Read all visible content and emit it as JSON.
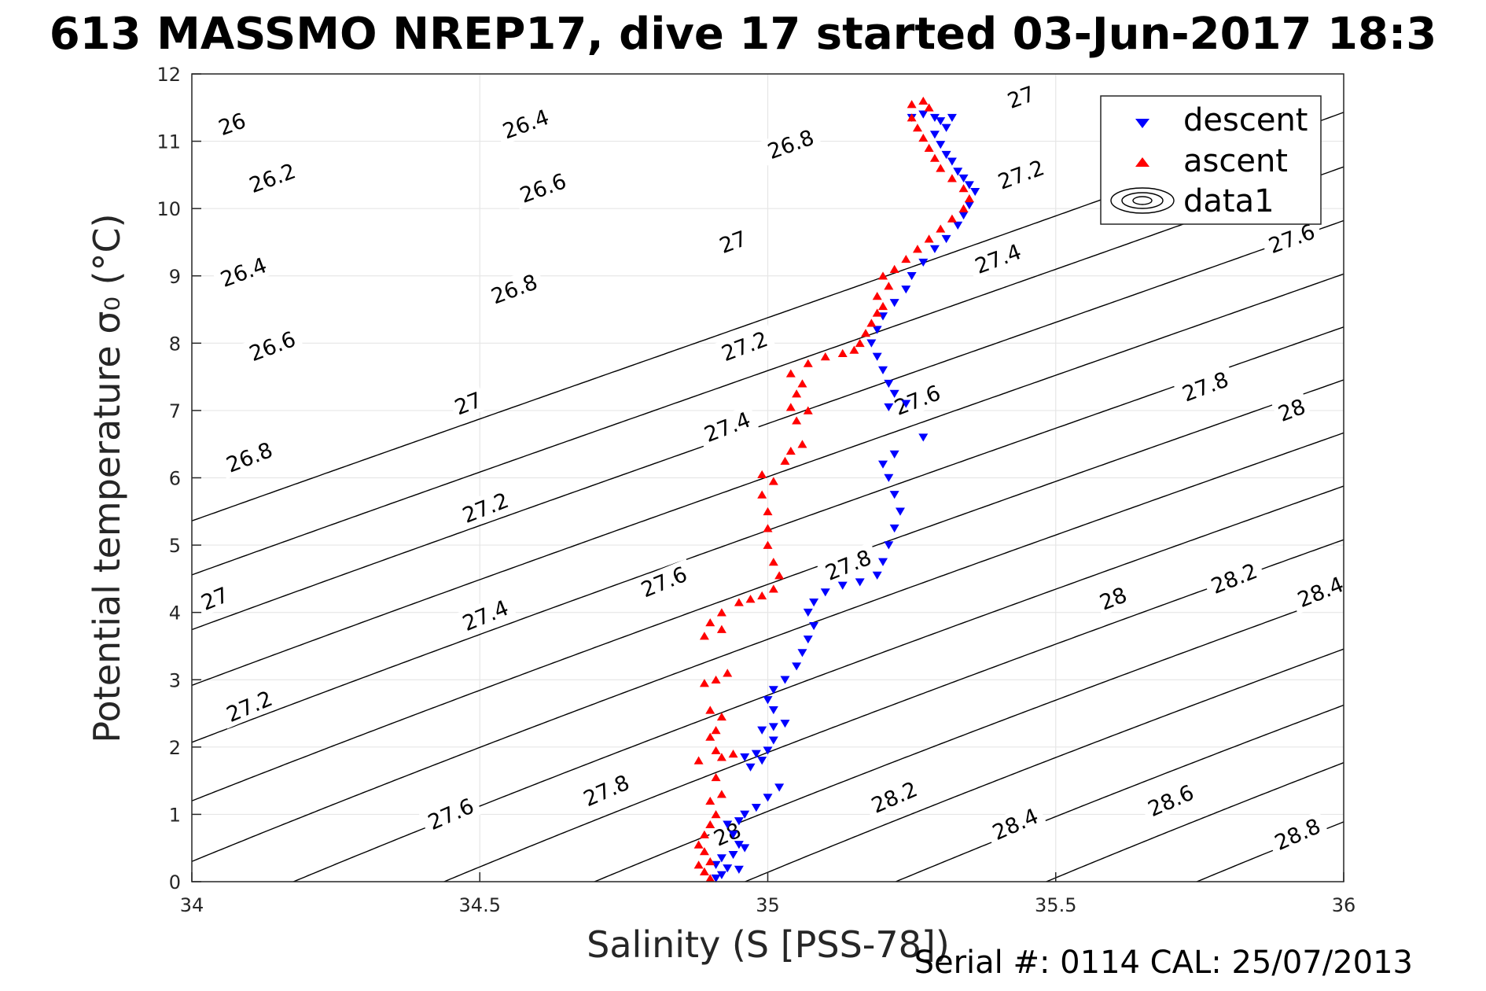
{
  "chart_data": {
    "type": "scatter",
    "title": "613 MASSMO NREP17, dive 17 started 03-Jun-2017 18:3",
    "xlabel": "Salinity (S [PSS-78])",
    "ylabel": "Potential temperature σ₀ (°C)",
    "xlim": [
      34,
      36
    ],
    "ylim": [
      0,
      12
    ],
    "grid": true,
    "legend_placement": "top-right",
    "x_ticks": [
      "34",
      "34.5",
      "35",
      "35.5",
      "36"
    ],
    "y_ticks": [
      "0",
      "1",
      "2",
      "3",
      "4",
      "5",
      "6",
      "7",
      "8",
      "9",
      "10",
      "11",
      "12"
    ],
    "legend": [
      "descent",
      "ascent",
      "data1"
    ],
    "footer": "Serial #: 0114  CAL: 25/07/2013",
    "colors": {
      "descent": "#0000ff",
      "ascent": "#ff0000",
      "contour": "#000000",
      "grid": "#e6e6e6"
    },
    "contours": {
      "levels": [
        25.8,
        26.0,
        26.2,
        26.4,
        26.6,
        26.8,
        27.0,
        27.2,
        27.4,
        27.6,
        27.8,
        28.0,
        28.2,
        28.4,
        28.6,
        28.8,
        29.0
      ],
      "labels": [
        {
          "text": "26",
          "s": 34.07,
          "t": 11.25
        },
        {
          "text": "26.2",
          "s": 34.14,
          "t": 10.45
        },
        {
          "text": "26.4",
          "s": 34.09,
          "t": 9.05
        },
        {
          "text": "26.6",
          "s": 34.14,
          "t": 7.95
        },
        {
          "text": "26.8",
          "s": 34.1,
          "t": 6.3
        },
        {
          "text": "27",
          "s": 34.04,
          "t": 4.2
        },
        {
          "text": "27.2",
          "s": 34.1,
          "t": 2.6
        },
        {
          "text": "26.4",
          "s": 34.58,
          "t": 11.25
        },
        {
          "text": "26.6",
          "s": 34.61,
          "t": 10.3
        },
        {
          "text": "26.8",
          "s": 34.56,
          "t": 8.8
        },
        {
          "text": "27",
          "s": 34.48,
          "t": 7.1
        },
        {
          "text": "27.2",
          "s": 34.51,
          "t": 5.55
        },
        {
          "text": "27.4",
          "s": 34.51,
          "t": 3.95
        },
        {
          "text": "27.6",
          "s": 34.45,
          "t": 1.0
        },
        {
          "text": "26.8",
          "s": 35.04,
          "t": 10.95
        },
        {
          "text": "27",
          "s": 34.94,
          "t": 9.5
        },
        {
          "text": "27.2",
          "s": 34.96,
          "t": 7.95
        },
        {
          "text": "27.4",
          "s": 34.93,
          "t": 6.75
        },
        {
          "text": "27.6",
          "s": 34.82,
          "t": 4.45
        },
        {
          "text": "27.8",
          "s": 34.72,
          "t": 1.35
        },
        {
          "text": "27",
          "s": 35.44,
          "t": 11.65
        },
        {
          "text": "27.2",
          "s": 35.44,
          "t": 10.5
        },
        {
          "text": "27.4",
          "s": 35.4,
          "t": 9.25
        },
        {
          "text": "27.6",
          "s": 35.26,
          "t": 7.15
        },
        {
          "text": "27.8",
          "s": 35.14,
          "t": 4.7
        },
        {
          "text": "28",
          "s": 34.93,
          "t": 0.7
        },
        {
          "text": "27.6",
          "s": 35.91,
          "t": 9.55
        },
        {
          "text": "27.8",
          "s": 35.76,
          "t": 7.35
        },
        {
          "text": "28",
          "s": 35.6,
          "t": 4.2
        },
        {
          "text": "28.2",
          "s": 35.22,
          "t": 1.25
        },
        {
          "text": "28",
          "s": 35.91,
          "t": 7.0
        },
        {
          "text": "28.2",
          "s": 35.81,
          "t": 4.5
        },
        {
          "text": "28.4",
          "s": 35.43,
          "t": 0.85
        },
        {
          "text": "28.4",
          "s": 36.0,
          "t": 4.3
        },
        {
          "text": "28.6",
          "s": 35.7,
          "t": 1.2
        },
        {
          "text": "28.8",
          "s": 35.92,
          "t": 0.7
        }
      ]
    },
    "series": [
      {
        "name": "descent",
        "marker": "triangle-down",
        "points": [
          [
            35.25,
            11.35
          ],
          [
            35.27,
            11.4
          ],
          [
            35.29,
            11.35
          ],
          [
            35.3,
            11.3
          ],
          [
            35.32,
            11.35
          ],
          [
            35.31,
            11.2
          ],
          [
            35.29,
            11.1
          ],
          [
            35.3,
            10.95
          ],
          [
            35.31,
            10.8
          ],
          [
            35.32,
            10.7
          ],
          [
            35.33,
            10.55
          ],
          [
            35.34,
            10.45
          ],
          [
            35.35,
            10.35
          ],
          [
            35.36,
            10.25
          ],
          [
            35.35,
            10.05
          ],
          [
            35.34,
            9.9
          ],
          [
            35.33,
            9.75
          ],
          [
            35.31,
            9.55
          ],
          [
            35.29,
            9.4
          ],
          [
            35.27,
            9.2
          ],
          [
            35.25,
            9.0
          ],
          [
            35.24,
            8.8
          ],
          [
            35.22,
            8.6
          ],
          [
            35.2,
            8.4
          ],
          [
            35.19,
            8.2
          ],
          [
            35.18,
            8.0
          ],
          [
            35.19,
            7.8
          ],
          [
            35.2,
            7.6
          ],
          [
            35.21,
            7.4
          ],
          [
            35.22,
            7.25
          ],
          [
            35.21,
            7.05
          ],
          [
            35.24,
            7.1
          ],
          [
            35.27,
            6.6
          ],
          [
            35.22,
            6.35
          ],
          [
            35.2,
            6.2
          ],
          [
            35.21,
            6.0
          ],
          [
            35.22,
            5.75
          ],
          [
            35.23,
            5.5
          ],
          [
            35.22,
            5.25
          ],
          [
            35.21,
            5.0
          ],
          [
            35.2,
            4.75
          ],
          [
            35.19,
            4.55
          ],
          [
            35.16,
            4.45
          ],
          [
            35.13,
            4.4
          ],
          [
            35.1,
            4.3
          ],
          [
            35.08,
            4.15
          ],
          [
            35.07,
            4.0
          ],
          [
            35.08,
            3.8
          ],
          [
            35.07,
            3.6
          ],
          [
            35.06,
            3.4
          ],
          [
            35.05,
            3.2
          ],
          [
            35.03,
            3.0
          ],
          [
            35.01,
            2.85
          ],
          [
            35.0,
            2.7
          ],
          [
            35.01,
            2.55
          ],
          [
            35.03,
            2.35
          ],
          [
            35.01,
            2.3
          ],
          [
            34.99,
            2.25
          ],
          [
            35.01,
            2.1
          ],
          [
            35.0,
            1.95
          ],
          [
            34.98,
            1.9
          ],
          [
            34.96,
            1.85
          ],
          [
            34.99,
            1.8
          ],
          [
            34.97,
            1.7
          ],
          [
            35.02,
            1.4
          ],
          [
            35.0,
            1.25
          ],
          [
            34.98,
            1.1
          ],
          [
            34.96,
            1.0
          ],
          [
            34.95,
            0.9
          ],
          [
            34.93,
            0.85
          ],
          [
            34.94,
            0.7
          ],
          [
            34.95,
            0.55
          ],
          [
            34.96,
            0.5
          ],
          [
            34.94,
            0.4
          ],
          [
            34.92,
            0.35
          ],
          [
            34.91,
            0.25
          ],
          [
            34.93,
            0.2
          ],
          [
            34.95,
            0.18
          ],
          [
            34.92,
            0.1
          ],
          [
            34.91,
            0.05
          ]
        ]
      },
      {
        "name": "ascent",
        "marker": "triangle-up",
        "points": [
          [
            35.25,
            11.55
          ],
          [
            35.27,
            11.6
          ],
          [
            35.28,
            11.5
          ],
          [
            35.25,
            11.35
          ],
          [
            35.26,
            11.2
          ],
          [
            35.27,
            11.05
          ],
          [
            35.28,
            10.9
          ],
          [
            35.29,
            10.75
          ],
          [
            35.3,
            10.6
          ],
          [
            35.32,
            10.45
          ],
          [
            35.34,
            10.3
          ],
          [
            35.35,
            10.15
          ],
          [
            35.34,
            10.0
          ],
          [
            35.32,
            9.85
          ],
          [
            35.3,
            9.7
          ],
          [
            35.28,
            9.55
          ],
          [
            35.26,
            9.4
          ],
          [
            35.24,
            9.25
          ],
          [
            35.22,
            9.1
          ],
          [
            35.2,
            9.0
          ],
          [
            35.21,
            8.85
          ],
          [
            35.19,
            8.7
          ],
          [
            35.2,
            8.55
          ],
          [
            35.19,
            8.45
          ],
          [
            35.18,
            8.3
          ],
          [
            35.17,
            8.15
          ],
          [
            35.16,
            8.0
          ],
          [
            35.15,
            7.9
          ],
          [
            35.13,
            7.85
          ],
          [
            35.1,
            7.8
          ],
          [
            35.07,
            7.7
          ],
          [
            35.04,
            7.55
          ],
          [
            35.06,
            7.4
          ],
          [
            35.05,
            7.25
          ],
          [
            35.04,
            7.05
          ],
          [
            35.07,
            7.0
          ],
          [
            35.05,
            6.85
          ],
          [
            35.06,
            6.5
          ],
          [
            35.04,
            6.4
          ],
          [
            35.03,
            6.25
          ],
          [
            34.99,
            6.05
          ],
          [
            35.01,
            5.95
          ],
          [
            34.99,
            5.75
          ],
          [
            35.0,
            5.5
          ],
          [
            35.0,
            5.25
          ],
          [
            35.0,
            5.0
          ],
          [
            35.01,
            4.75
          ],
          [
            35.02,
            4.55
          ],
          [
            35.01,
            4.35
          ],
          [
            34.99,
            4.25
          ],
          [
            34.97,
            4.2
          ],
          [
            34.95,
            4.15
          ],
          [
            34.92,
            4.0
          ],
          [
            34.9,
            3.85
          ],
          [
            34.92,
            3.75
          ],
          [
            34.89,
            3.65
          ],
          [
            34.93,
            3.1
          ],
          [
            34.91,
            3.0
          ],
          [
            34.89,
            2.95
          ],
          [
            34.9,
            2.55
          ],
          [
            34.92,
            2.45
          ],
          [
            34.91,
            2.25
          ],
          [
            34.9,
            2.15
          ],
          [
            34.91,
            1.95
          ],
          [
            34.88,
            1.8
          ],
          [
            34.92,
            1.85
          ],
          [
            34.94,
            1.9
          ],
          [
            34.91,
            1.55
          ],
          [
            34.92,
            1.3
          ],
          [
            34.9,
            1.2
          ],
          [
            34.91,
            1.0
          ],
          [
            34.9,
            0.85
          ],
          [
            34.89,
            0.7
          ],
          [
            34.88,
            0.55
          ],
          [
            34.89,
            0.45
          ],
          [
            34.9,
            0.3
          ],
          [
            34.88,
            0.25
          ],
          [
            34.89,
            0.15
          ],
          [
            34.9,
            0.05
          ]
        ]
      }
    ]
  }
}
